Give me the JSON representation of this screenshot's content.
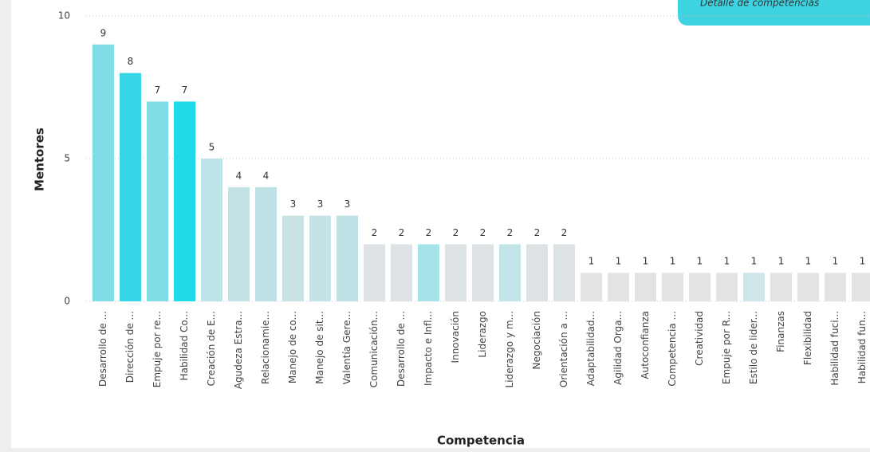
{
  "button": {
    "label": "Detalle de competencias"
  },
  "chart_data": {
    "type": "bar",
    "x_label": "Competencia",
    "y_label": "Mentores",
    "categories": [
      "Desarrollo de ...",
      "Dirección de ...",
      "Empuje por re...",
      "Habilidad Co...",
      "Creación de E...",
      "Agudeza Estra...",
      "Relacionamie...",
      "Manejo de co...",
      "Manejo de sit...",
      "Valentía Gere...",
      "Comunicación...",
      "Desarrollo de ...",
      "Impacto e Infl...",
      "Innovación",
      "Liderazgo",
      "Liderazgo y m...",
      "Negociación",
      "Orientación a ...",
      "Adaptabilidad...",
      "Agilidad Orga...",
      "Autoconfianza",
      "Competencia ...",
      "Creatividad",
      "Empuje por R...",
      "Estilo de lider...",
      "Finanzas",
      "Flexibilidad",
      "Habilidad fuci...",
      "Habilidad fun..."
    ],
    "values": [
      9,
      8,
      7,
      7,
      5,
      4,
      4,
      3,
      3,
      3,
      2,
      2,
      2,
      2,
      2,
      2,
      2,
      2,
      1,
      1,
      1,
      1,
      1,
      1,
      1,
      1,
      1,
      1,
      1
    ],
    "colors": [
      "#7fdde6",
      "#36d6e6",
      "#7fdde6",
      "#1fdbe9",
      "#bde4e8",
      "#c5e3e6",
      "#bfe1e5",
      "#c9e2e4",
      "#c5e3e6",
      "#bfe1e5",
      "#dde3e4",
      "#dde3e4",
      "#a6e3e8",
      "#dde3e4",
      "#dde3e4",
      "#c4e5e8",
      "#dde3e4",
      "#dde3e4",
      "#e3e3e3",
      "#e3e3e3",
      "#e3e3e3",
      "#e3e3e3",
      "#e3e3e3",
      "#e3e3e3",
      "#cfe6e9",
      "#e3e3e3",
      "#e3e3e3",
      "#e3e3e3",
      "#e3e3e3"
    ],
    "ylim": [
      0,
      10
    ],
    "yticks": [
      0,
      5,
      10
    ],
    "grid": true
  }
}
